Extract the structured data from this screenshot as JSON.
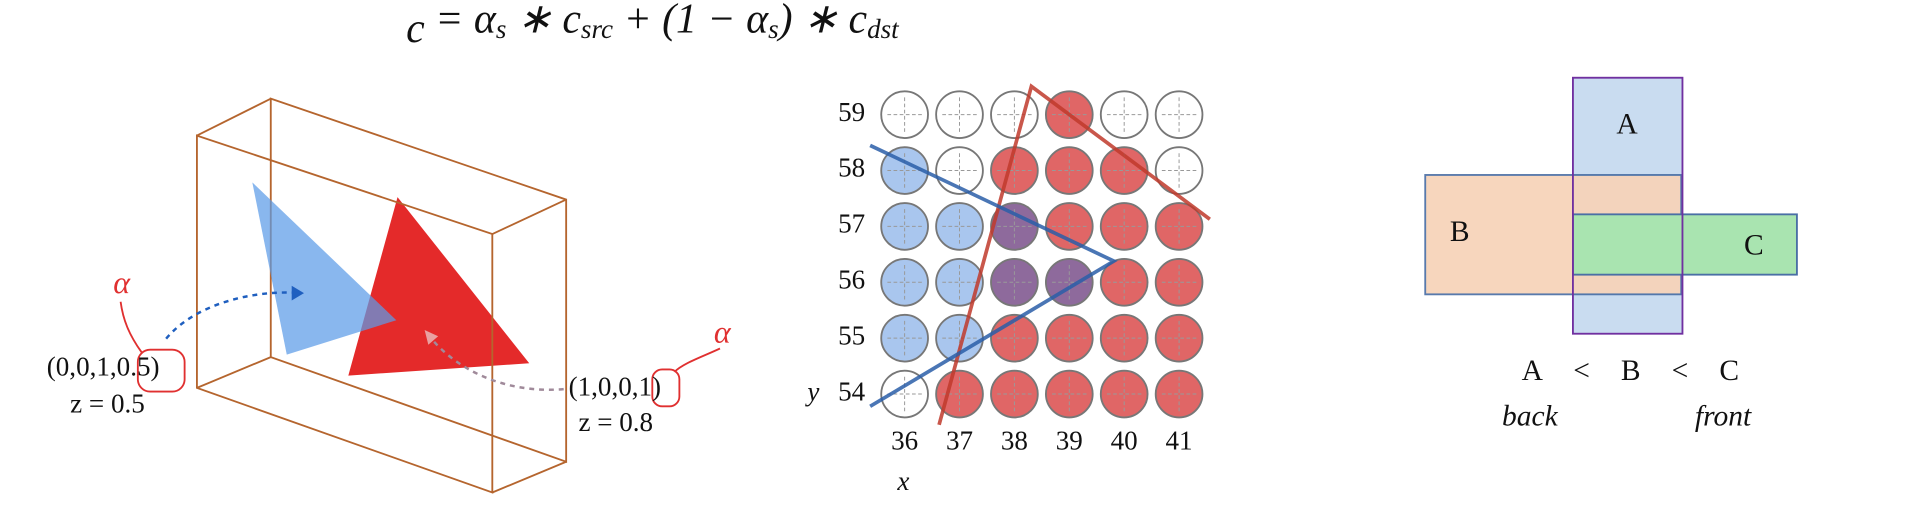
{
  "formula": [
    {
      "text": "c"
    },
    {
      "text": " = α"
    },
    {
      "sub": "s"
    },
    {
      "text": " ∗ c"
    },
    {
      "sub": "src"
    },
    {
      "text": " + (1 − α"
    },
    {
      "sub": "s"
    },
    {
      "text": ") ∗ c"
    },
    {
      "sub": "dst"
    }
  ],
  "scene": {
    "alpha_marks": [
      "α",
      "α"
    ],
    "blue": {
      "label": "(0,0,1,0.5)",
      "depth": "z = 0.5"
    },
    "red": {
      "label": "(1,0,0,1)",
      "depth": "z = 0.8"
    }
  },
  "grid": {
    "y_title": "y",
    "x_title": "x",
    "x_labels": [
      "36",
      "37",
      "38",
      "39",
      "40",
      "41"
    ],
    "rows": [
      {
        "label": "59",
        "cells": [
          "#ffffff",
          "#ffffff",
          "#ffffff",
          "#e06666",
          "#ffffff",
          "#ffffff"
        ]
      },
      {
        "label": "58",
        "cells": [
          "#a9c6ee",
          "#ffffff",
          "#e06666",
          "#e06666",
          "#e06666",
          "#ffffff"
        ]
      },
      {
        "label": "57",
        "cells": [
          "#a9c6ee",
          "#a9c6ee",
          "#8e6a9c",
          "#e06666",
          "#e06666",
          "#e06666"
        ]
      },
      {
        "label": "56",
        "cells": [
          "#a9c6ee",
          "#a9c6ee",
          "#8e6a9c",
          "#8e6a9c",
          "#e06666",
          "#e06666"
        ]
      },
      {
        "label": "55",
        "cells": [
          "#a9c6ee",
          "#a9c6ee",
          "#e06666",
          "#e06666",
          "#e06666",
          "#e06666"
        ]
      },
      {
        "label": "54",
        "cells": [
          "#ffffff",
          "#e06666",
          "#e06666",
          "#e06666",
          "#e06666",
          "#e06666"
        ]
      }
    ]
  },
  "layers": {
    "a": "A",
    "b": "B",
    "c": "C",
    "order": [
      "A",
      "<",
      "B",
      "<",
      "C"
    ],
    "back": "back",
    "front": "front"
  }
}
